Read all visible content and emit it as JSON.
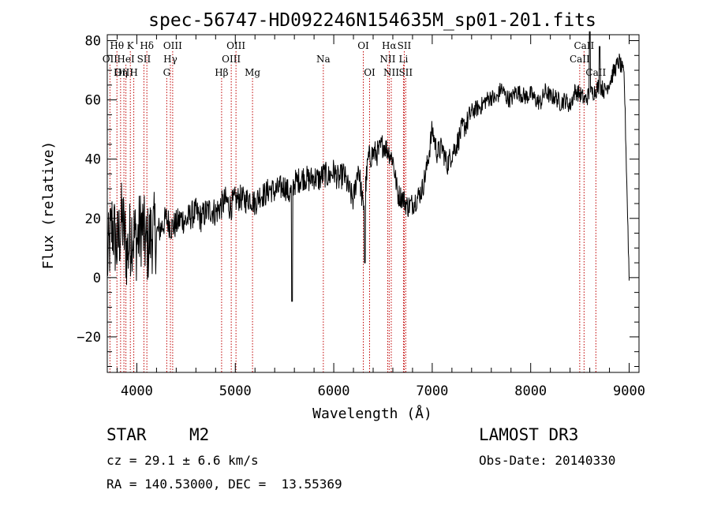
{
  "chart_data": {
    "type": "line",
    "title": "spec-56747-HD092246N154635M_sp01-201.fits",
    "xlabel": "Wavelength (Å)",
    "ylabel": "Flux (relative)",
    "xlim": [
      3700,
      9100
    ],
    "ylim": [
      -32,
      82
    ],
    "xticks": [
      4000,
      5000,
      6000,
      7000,
      8000,
      9000
    ],
    "yticks": [
      -20,
      0,
      20,
      40,
      60,
      80
    ],
    "ytick_labels": [
      "−20",
      "0",
      "20",
      "40",
      "60",
      "80"
    ],
    "grid": false,
    "series": [
      {
        "name": "flux",
        "x": [
          3700,
          3750,
          3800,
          3850,
          3900,
          3950,
          4000,
          4050,
          4100,
          4150,
          4200,
          4250,
          4300,
          4350,
          4400,
          4450,
          4500,
          4550,
          4600,
          4650,
          4700,
          4750,
          4800,
          4850,
          4900,
          4950,
          5000,
          5050,
          5100,
          5150,
          5200,
          5250,
          5300,
          5350,
          5400,
          5450,
          5500,
          5550,
          5600,
          5650,
          5700,
          5750,
          5800,
          5850,
          5900,
          5950,
          6000,
          6050,
          6100,
          6150,
          6200,
          6250,
          6300,
          6350,
          6400,
          6450,
          6500,
          6550,
          6600,
          6650,
          6700,
          6750,
          6800,
          6850,
          6900,
          6950,
          7000,
          7050,
          7100,
          7150,
          7200,
          7250,
          7300,
          7350,
          7400,
          7450,
          7500,
          7550,
          7600,
          7650,
          7700,
          7750,
          7800,
          7850,
          7900,
          7950,
          8000,
          8050,
          8100,
          8150,
          8200,
          8250,
          8300,
          8350,
          8400,
          8450,
          8500,
          8550,
          8600,
          8650,
          8700,
          8750,
          8800,
          8850,
          8900,
          8950,
          9000
        ],
        "y": [
          5,
          18,
          10,
          20,
          8,
          16,
          12,
          18,
          10,
          15,
          15,
          17,
          20,
          17,
          18,
          20,
          19,
          21,
          22,
          20,
          22,
          23,
          22,
          24,
          26,
          24,
          26,
          27,
          26,
          27,
          25,
          28,
          28,
          30,
          29,
          30,
          31,
          28,
          32,
          33,
          34,
          33,
          34,
          33,
          35,
          34,
          36,
          33,
          35,
          30,
          26,
          38,
          23,
          40,
          42,
          42,
          45,
          43,
          40,
          28,
          27,
          24,
          25,
          27,
          30,
          38,
          50,
          42,
          44,
          38,
          42,
          45,
          50,
          52,
          56,
          57,
          58,
          60,
          61,
          60,
          64,
          61,
          60,
          63,
          62,
          61,
          62,
          60,
          59,
          63,
          61,
          61,
          59,
          60,
          58,
          63,
          62,
          60,
          62,
          63,
          65,
          63,
          66,
          70,
          73,
          68,
          0
        ]
      }
    ],
    "spectral_lines": [
      {
        "label": "Hθ",
        "wavelength": 3798,
        "row": 1
      },
      {
        "label": "OII",
        "wavelength": 3727,
        "row": 2
      },
      {
        "label": "OIII",
        "wavelength": 3869,
        "row": 3
      },
      {
        "label": "K",
        "wavelength": 3934,
        "row": 1
      },
      {
        "label": "HeI",
        "wavelength": 3889,
        "row": 2
      },
      {
        "label": "Hη",
        "wavelength": 3835,
        "row": 3
      },
      {
        "label": "SII",
        "wavelength": 4072,
        "row": 2
      },
      {
        "label": "H",
        "wavelength": 3969,
        "row": 3
      },
      {
        "label": "Hδ",
        "wavelength": 4102,
        "row": 1
      },
      {
        "label": "OIII",
        "wavelength": 4364,
        "row": 1
      },
      {
        "label": "Hγ",
        "wavelength": 4341,
        "row": 2
      },
      {
        "label": "G",
        "wavelength": 4304,
        "row": 3
      },
      {
        "label": "OIII",
        "wavelength": 5007,
        "row": 1
      },
      {
        "label": "OIII",
        "wavelength": 4959,
        "row": 2
      },
      {
        "label": "Hβ",
        "wavelength": 4861,
        "row": 3
      },
      {
        "label": "Mg",
        "wavelength": 5175,
        "row": 3
      },
      {
        "label": "Na",
        "wavelength": 5894,
        "row": 2
      },
      {
        "label": "OI",
        "wavelength": 6300,
        "row": 1
      },
      {
        "label": "OI",
        "wavelength": 6364,
        "row": 3
      },
      {
        "label": "Hα",
        "wavelength": 6563,
        "row": 1
      },
      {
        "label": "SII",
        "wavelength": 6716,
        "row": 1
      },
      {
        "label": "NII",
        "wavelength": 6548,
        "row": 2
      },
      {
        "label": "Li",
        "wavelength": 6708,
        "row": 2
      },
      {
        "label": "NII",
        "wavelength": 6584,
        "row": 3
      },
      {
        "label": "SII",
        "wavelength": 6731,
        "row": 3
      },
      {
        "label": "CaII",
        "wavelength": 8542,
        "row": 1
      },
      {
        "label": "CaII",
        "wavelength": 8498,
        "row": 2
      },
      {
        "label": "CaII",
        "wavelength": 8662,
        "row": 3
      }
    ],
    "line_color": "#c00000"
  },
  "info": {
    "object_class": "STAR",
    "subclass": "M2",
    "survey": "LAMOST DR3",
    "redshift": "cz = 29.1 ± 6.6 km/s",
    "coordinates": "RA = 140.53000, DEC =  13.55369",
    "obs_date": "Obs-Date: 20140330"
  }
}
